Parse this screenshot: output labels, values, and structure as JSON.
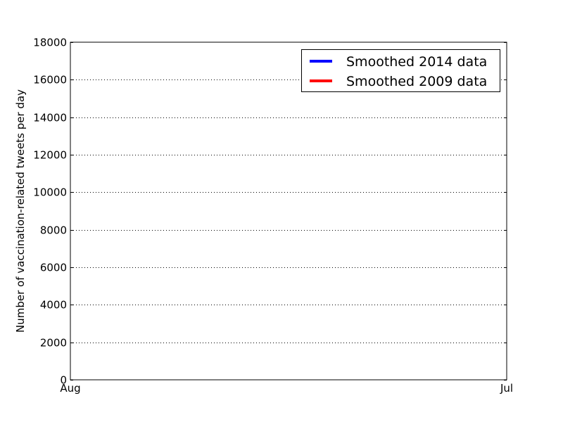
{
  "chart_data": {
    "type": "line",
    "title": "",
    "xlabel": "",
    "ylabel": "Number of vaccination-related tweets per day",
    "x_ticks": [
      "Aug",
      "Jul"
    ],
    "xlim": [
      "Aug",
      "Jul"
    ],
    "ylim": [
      0,
      18000
    ],
    "y_ticks": [
      0,
      2000,
      4000,
      6000,
      8000,
      10000,
      12000,
      14000,
      16000,
      18000
    ],
    "grid": "horizontal dotted",
    "legend_position": "top-right",
    "series": [
      {
        "name": "Smoothed 2014 data",
        "color": "#0000ff",
        "x": [],
        "values": []
      },
      {
        "name": "Smoothed 2009 data",
        "color": "#ff0000",
        "x": [],
        "values": []
      }
    ]
  }
}
